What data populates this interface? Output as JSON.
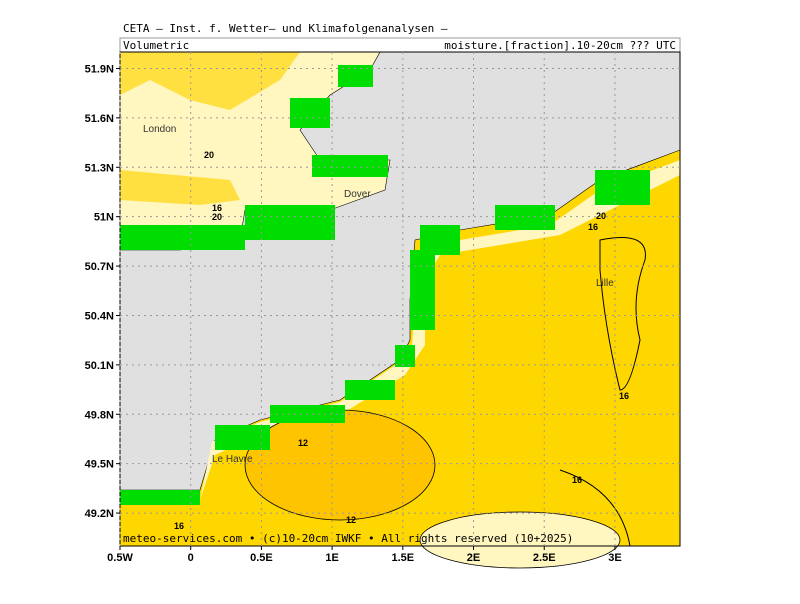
{
  "header": {
    "title": "CETA — Inst. f. Wetter— und Klimafolgenanalysen —",
    "left": "Volumetric",
    "right": "moisture.[fraction].10-20cm ??? UTC"
  },
  "footer": "meteo-services.com • (c)10-20cm IWKF • All rights reserved (10+2025)",
  "map": {
    "xlim": [
      -0.5,
      3.46
    ],
    "ylim": [
      49.0,
      52.0
    ],
    "xticks": [
      {
        "value": -0.5,
        "label": "0.5W"
      },
      0,
      {
        "value": 0.5,
        "label": "0.5E"
      },
      {
        "value": 1,
        "label": "1E"
      },
      {
        "value": 1.5,
        "label": "1.5E"
      },
      {
        "value": 2,
        "label": "2E"
      },
      {
        "value": 2.5,
        "label": "2.5E"
      },
      {
        "value": 3,
        "label": "3E"
      }
    ],
    "yticks": [
      {
        "value": 49.2,
        "label": "49.2N"
      },
      {
        "value": 49.5,
        "label": "49.5N"
      },
      {
        "value": 49.8,
        "label": "49.8N"
      },
      {
        "value": 50.1,
        "label": "50.1N"
      },
      {
        "value": 50.4,
        "label": "50.4N"
      },
      {
        "value": 50.7,
        "label": "50.7N"
      },
      {
        "value": 51,
        "label": "51N"
      },
      {
        "value": 51.3,
        "label": "51.3N"
      },
      {
        "value": 51.6,
        "label": "51.6N"
      },
      {
        "value": 51.9,
        "label": "51.9N"
      }
    ],
    "grid": true,
    "places": [
      "London",
      "Dover",
      "Lille",
      "Le Havre"
    ],
    "contour_labels": [
      "20",
      "16",
      "20",
      "12",
      "12",
      "16",
      "16",
      "16",
      "20",
      "16"
    ]
  }
}
